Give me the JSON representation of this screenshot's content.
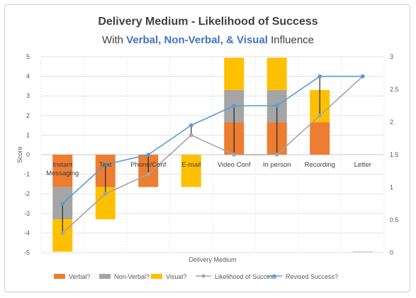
{
  "chart_data": {
    "type": "bar",
    "title": "Delivery Medium - Likelihood of Success",
    "subtitle": {
      "prefix": "With ",
      "highlight": "Verbal, Non-Verbal, & Visual",
      "suffix": " Influence"
    },
    "xlabel": "Delivery Medium",
    "ylabel": "Score",
    "ylim": [
      -5,
      5
    ],
    "y2lim": [
      0,
      3
    ],
    "yticks": [
      "5",
      "4",
      "3",
      "2",
      "1",
      "0",
      "-1",
      "-2",
      "-3",
      "-4",
      "-5"
    ],
    "y2ticks": [
      "3",
      "2.5",
      "2",
      "1.5",
      "1",
      "0.5",
      "0"
    ],
    "categories": [
      "Instant Messaging",
      "Text",
      "Phone/Conf",
      "E-mail",
      "Video Conf",
      "In person",
      "Recording",
      "Letter"
    ],
    "category_lines": [
      [
        "Instant",
        "Messaging"
      ],
      [
        "Text"
      ],
      [
        "Phone/Conf"
      ],
      [
        "E-mail"
      ],
      [
        "Video Conf"
      ],
      [
        "In person"
      ],
      [
        "Recording"
      ],
      [
        "Letter"
      ]
    ],
    "series": [
      {
        "name": "Verbal?",
        "kind": "bar",
        "color": "#ed7d31",
        "values": [
          -1.65,
          -1.65,
          -1.65,
          0,
          1.65,
          1.65,
          1.65,
          0
        ]
      },
      {
        "name": "Non-Verbal?",
        "kind": "bar",
        "color": "#a5a5a5",
        "values": [
          -1.65,
          0,
          0,
          0,
          1.65,
          1.65,
          0,
          0
        ]
      },
      {
        "name": "Visual?",
        "kind": "bar",
        "color": "#ffc000",
        "values": [
          -1.65,
          -1.65,
          0,
          -1.65,
          1.65,
          1.65,
          1.65,
          0
        ]
      },
      {
        "name": "Likelihood of Success",
        "kind": "line",
        "axis": "secondary",
        "color": "#a5a5a5",
        "values": [
          0.3,
          0.9,
          1.2,
          1.8,
          1.5,
          1.5,
          2.1,
          2.7
        ]
      },
      {
        "name": "Revised Success?",
        "kind": "line",
        "axis": "secondary",
        "color": "#5b9bd5",
        "values": [
          0.75,
          1.35,
          1.5,
          1.95,
          2.25,
          2.25,
          2.7,
          2.7
        ]
      }
    ],
    "grid": true,
    "legend": "bottom"
  }
}
